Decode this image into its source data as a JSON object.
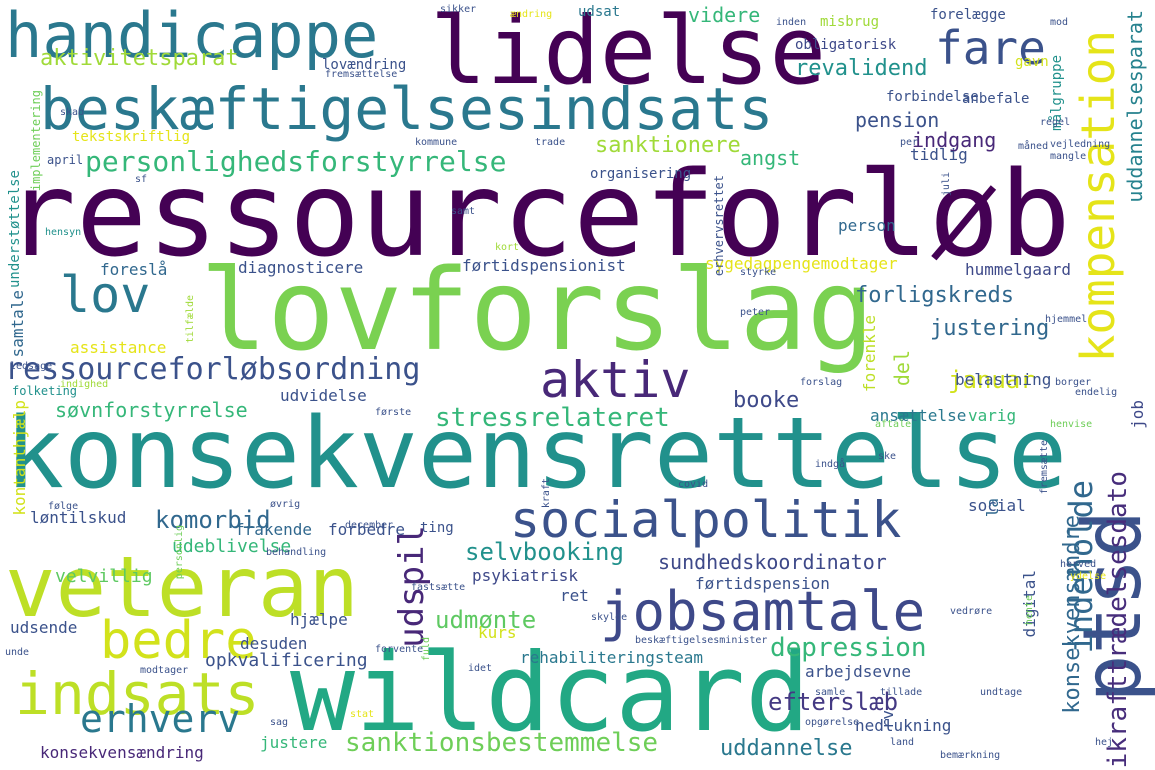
{
  "words": [
    {
      "text": "ressourceforløb",
      "color": "#440154"
    },
    {
      "text": "lovforslag",
      "color": "#7ad151"
    },
    {
      "text": "konsekvensrettelse",
      "color": "#21918c"
    },
    {
      "text": "lidelse",
      "color": "#440154"
    },
    {
      "text": "wildcard",
      "color": "#22a884"
    },
    {
      "text": "veteran",
      "color": "#bddf26"
    },
    {
      "text": "beskæftigelsesindsats",
      "color": "#2a788e"
    },
    {
      "text": "ptsd",
      "color": "#3b528b"
    },
    {
      "text": "handicappe",
      "color": "#2a788e"
    },
    {
      "text": "socialpolitik",
      "color": "#3b528b"
    },
    {
      "text": "jobsamtale",
      "color": "#3e4989"
    },
    {
      "text": "aktiv",
      "color": "#482878"
    },
    {
      "text": "lov",
      "color": "#2a788e"
    },
    {
      "text": "indsats",
      "color": "#bddf26"
    },
    {
      "text": "bedre",
      "color": "#d2e21b"
    },
    {
      "text": "kompensation",
      "color": "#e5e419"
    },
    {
      "text": "fare",
      "color": "#3b528b"
    },
    {
      "text": "ressourceforløbsordning",
      "color": "#3b528b"
    },
    {
      "text": "personlighedsforstyrrelse",
      "color": "#35b779"
    },
    {
      "text": "erhverv",
      "color": "#2a788e"
    },
    {
      "text": "indeholde",
      "color": "#31688e"
    },
    {
      "text": "udspil",
      "color": "#482878"
    },
    {
      "text": "depression",
      "color": "#35b779"
    },
    {
      "text": "ikrafttrædelsesdato",
      "color": "#472d7b"
    },
    {
      "text": "sanktionsbestemmelse",
      "color": "#6ece58"
    },
    {
      "text": "stressrelateret",
      "color": "#35b779"
    },
    {
      "text": "aktivitetsparat",
      "color": "#a0da39"
    },
    {
      "text": "revalidend",
      "color": "#21918c"
    },
    {
      "text": "uddannelsesparat",
      "color": "#26828e"
    },
    {
      "text": "forligskreds",
      "color": "#31688e"
    },
    {
      "text": "justering",
      "color": "#31688e"
    },
    {
      "text": "komorbid",
      "color": "#31688e"
    },
    {
      "text": "søvnforstyrrelse",
      "color": "#35b779"
    },
    {
      "text": "selvbooking",
      "color": "#21918c"
    },
    {
      "text": "sundhedskoordinator",
      "color": "#3e4989"
    },
    {
      "text": "udmønte",
      "color": "#5ec962"
    },
    {
      "text": "efterslæb",
      "color": "#443983"
    },
    {
      "text": "konsekvensændre",
      "color": "#31688e"
    },
    {
      "text": "uddannelse",
      "color": "#2a788e"
    },
    {
      "text": "januar",
      "color": "#d2e21b"
    },
    {
      "text": "videre",
      "color": "#35b779"
    },
    {
      "text": "pension",
      "color": "#3b528b"
    },
    {
      "text": "indgang",
      "color": "#482878"
    },
    {
      "text": "angst",
      "color": "#35b779"
    },
    {
      "text": "sanktionere",
      "color": "#a0da39"
    },
    {
      "text": "booke",
      "color": "#3e4989"
    },
    {
      "text": "del",
      "color": "#a0da39"
    },
    {
      "text": "forenkle",
      "color": "#bddf26"
    },
    {
      "text": "rehabiliteringsteam",
      "color": "#2a788e"
    },
    {
      "text": "opkvalificering",
      "color": "#3b528b"
    },
    {
      "text": "udeblivelse",
      "color": "#35b779"
    },
    {
      "text": "velvillig",
      "color": "#5ec962"
    },
    {
      "text": "psykiatrisk",
      "color": "#3e4989"
    },
    {
      "text": "førtidspension",
      "color": "#3b528b"
    },
    {
      "text": "førtidspensionist",
      "color": "#3b528b"
    },
    {
      "text": "sygedagpengemodtager",
      "color": "#e5e419"
    },
    {
      "text": "diagnosticere",
      "color": "#3b528b"
    },
    {
      "text": "foreslå",
      "color": "#31688e"
    },
    {
      "text": "hummelgaard",
      "color": "#3e4989"
    },
    {
      "text": "person",
      "color": "#31688e"
    },
    {
      "text": "belastning",
      "color": "#3b528b"
    },
    {
      "text": "ansættelse",
      "color": "#2a788e"
    },
    {
      "text": "varig",
      "color": "#35b779"
    },
    {
      "text": "job",
      "color": "#3e4989"
    },
    {
      "text": "social",
      "color": "#3b528b"
    },
    {
      "text": "la",
      "color": "#31688e"
    },
    {
      "text": "digital",
      "color": "#3b528b"
    },
    {
      "text": "rv",
      "color": "#3b528b"
    },
    {
      "text": "nedlukning",
      "color": "#3b528b"
    },
    {
      "text": "arbejdsevne",
      "color": "#3b528b"
    },
    {
      "text": "kurs",
      "color": "#d2e21b"
    },
    {
      "text": "ret",
      "color": "#3b528b"
    },
    {
      "text": "desuden",
      "color": "#3b528b"
    },
    {
      "text": "hjælpe",
      "color": "#3b528b"
    },
    {
      "text": "udsende",
      "color": "#3b528b"
    },
    {
      "text": "justere",
      "color": "#35b779"
    },
    {
      "text": "konsekvensændring",
      "color": "#482878"
    },
    {
      "text": "løntilskud",
      "color": "#3b528b"
    },
    {
      "text": "kontanthjælp",
      "color": "#d2e21b"
    },
    {
      "text": "frakende",
      "color": "#31688e"
    },
    {
      "text": "forbedre",
      "color": "#3b528b"
    },
    {
      "text": "assistance",
      "color": "#e5e419"
    },
    {
      "text": "samtale",
      "color": "#31688e"
    },
    {
      "text": "udvidelse",
      "color": "#3b528b"
    },
    {
      "text": "tidlig",
      "color": "#3b528b"
    },
    {
      "text": "misbrug",
      "color": "#a0da39"
    },
    {
      "text": "obligatorisk",
      "color": "#3e4989"
    },
    {
      "text": "gavn",
      "color": "#d2e21b"
    },
    {
      "text": "målgruppe",
      "color": "#21918c"
    },
    {
      "text": "anbefale",
      "color": "#3b528b"
    },
    {
      "text": "forbindelse",
      "color": "#3b528b"
    },
    {
      "text": "forelægge",
      "color": "#3b528b"
    },
    {
      "text": "udsat",
      "color": "#2a788e"
    },
    {
      "text": "lovændring",
      "color": "#3b528b"
    },
    {
      "text": "tekstskriftlig",
      "color": "#e5e419"
    },
    {
      "text": "skab",
      "color": "#3b528b"
    },
    {
      "text": "organisering",
      "color": "#3b528b"
    },
    {
      "text": "understøttelse",
      "color": "#21918c"
    },
    {
      "text": "implementering",
      "color": "#6ece58"
    },
    {
      "text": "erhvervsrettet",
      "color": "#3b528b"
    },
    {
      "text": "fremsættelse",
      "color": "#3b528b"
    },
    {
      "text": "sikker",
      "color": "#3b528b"
    },
    {
      "text": "ændring",
      "color": "#e5e419"
    },
    {
      "text": "inden",
      "color": "#3b528b"
    },
    {
      "text": "mod",
      "color": "#3b528b"
    },
    {
      "text": "trade",
      "color": "#3b528b"
    },
    {
      "text": "kommune",
      "color": "#3b528b"
    },
    {
      "text": "april",
      "color": "#3b528b"
    },
    {
      "text": "sf",
      "color": "#3b528b"
    },
    {
      "text": "hensyn",
      "color": "#21918c"
    },
    {
      "text": "samt",
      "color": "#3b528b"
    },
    {
      "text": "kort",
      "color": "#a0da39"
    },
    {
      "text": "tilfælde",
      "color": "#a0da39"
    },
    {
      "text": "ledsage",
      "color": "#3b528b"
    },
    {
      "text": "folketing",
      "color": "#21918c"
    },
    {
      "text": "indighed",
      "color": "#a0da39"
    },
    {
      "text": "styrke",
      "color": "#3b528b"
    },
    {
      "text": "peter",
      "color": "#3b528b"
    },
    {
      "text": "hjemmel",
      "color": "#3b528b"
    },
    {
      "text": "forslag",
      "color": "#3b528b"
    },
    {
      "text": "borger",
      "color": "#3b528b"
    },
    {
      "text": "endelig",
      "color": "#3b528b"
    },
    {
      "text": "første",
      "color": "#3b528b"
    },
    {
      "text": "aftale",
      "color": "#6ece58"
    },
    {
      "text": "henvise",
      "color": "#6ece58"
    },
    {
      "text": "fremsætte",
      "color": "#3b528b"
    },
    {
      "text": "ske",
      "color": "#3b528b"
    },
    {
      "text": "indgå",
      "color": "#3b528b"
    },
    {
      "text": "covid",
      "color": "#3b528b"
    },
    {
      "text": "kraft",
      "color": "#3b528b"
    },
    {
      "text": "følge",
      "color": "#3b528b"
    },
    {
      "text": "personlig",
      "color": "#6ece58"
    },
    {
      "text": "øvrig",
      "color": "#3b528b"
    },
    {
      "text": "december",
      "color": "#3b528b"
    },
    {
      "text": "ting",
      "color": "#3b528b"
    },
    {
      "text": "behandling",
      "color": "#3b528b"
    },
    {
      "text": "herved",
      "color": "#3b528b"
    },
    {
      "text": "fastsætte",
      "color": "#3b528b"
    },
    {
      "text": "skylde",
      "color": "#3b528b"
    },
    {
      "text": "vedrøre",
      "color": "#3b528b"
    },
    {
      "text": "ydelse",
      "color": "#e5e419"
    },
    {
      "text": "fuld",
      "color": "#6ece58"
    },
    {
      "text": "forvente",
      "color": "#3b528b"
    },
    {
      "text": "beskæftigelsesminister",
      "color": "#3b528b"
    },
    {
      "text": "unde",
      "color": "#3b528b"
    },
    {
      "text": "modtager",
      "color": "#3b528b"
    },
    {
      "text": "idet",
      "color": "#3b528b"
    },
    {
      "text": "samle",
      "color": "#3b528b"
    },
    {
      "text": "tillade",
      "color": "#3b528b"
    },
    {
      "text": "undtage",
      "color": "#3b528b"
    },
    {
      "text": "sag",
      "color": "#3b528b"
    },
    {
      "text": "stat",
      "color": "#e5e419"
    },
    {
      "text": "opgørelse",
      "color": "#3b528b"
    },
    {
      "text": "land",
      "color": "#3b528b"
    },
    {
      "text": "hej",
      "color": "#3b528b"
    },
    {
      "text": "bemærkning",
      "color": "#3b528b"
    },
    {
      "text": "regel",
      "color": "#3b528b"
    },
    {
      "text": "vejledning",
      "color": "#3b528b"
    },
    {
      "text": "mangle",
      "color": "#3b528b"
    },
    {
      "text": "måned",
      "color": "#3b528b"
    },
    {
      "text": "juli",
      "color": "#3b528b"
    },
    {
      "text": "per",
      "color": "#3b528b"
    },
    {
      "text": "hente",
      "color": "#6ece58"
    }
  ]
}
